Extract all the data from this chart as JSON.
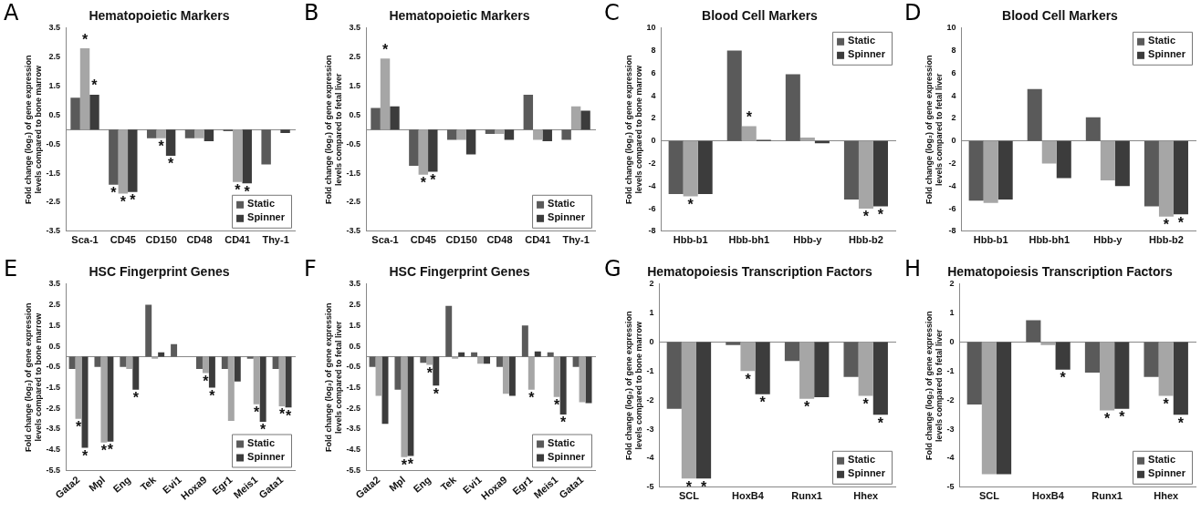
{
  "chart_data": [
    {
      "type": "bar",
      "title": "Hematopoietic Markers",
      "ylabel": "Fold change (log₂) of gene expression levels compared to bone marrow",
      "annotations": [
        "A"
      ],
      "categories": [
        "Sca-1",
        "CD45",
        "CD150",
        "CD48",
        "CD41",
        "Thy-1"
      ],
      "ylim": [
        -3.5,
        3.5
      ],
      "yticks": [
        -3.5,
        -2.5,
        -1.5,
        -0.5,
        0.5,
        1.5,
        2.5,
        3.5
      ],
      "legend": "bottom right",
      "series": [
        {
          "name": "Static",
          "color": "#5a5a5a",
          "values": [
            1.1,
            -1.9,
            -0.3,
            -0.3,
            -0.05,
            -1.2
          ],
          "value_labels": [
            null,
            "*",
            null,
            null,
            null,
            null
          ]
        },
        {
          "color": "#a6a6a6",
          "values": [
            2.8,
            -2.2,
            -0.3,
            -0.3,
            -1.8,
            0
          ],
          "value_labels": [
            "*",
            "*",
            "*",
            null,
            "*",
            null
          ]
        },
        {
          "name": "Spinner",
          "color": "#3c3c3c",
          "values": [
            1.2,
            -2.15,
            -0.9,
            -0.4,
            -1.85,
            -0.12
          ],
          "value_labels": [
            "*",
            "*",
            "*",
            null,
            "*",
            null
          ]
        }
      ]
    },
    {
      "type": "bar",
      "title": "Hematopoietic Markers",
      "ylabel": "Fold change (log₂) of gene expression levels compared to fetal liver",
      "annotations": [
        "B"
      ],
      "categories": [
        "Sca-1",
        "CD45",
        "CD150",
        "CD48",
        "CD41",
        "Thy-1"
      ],
      "ylim": [
        -3.5,
        3.5
      ],
      "yticks": [
        -3.5,
        -2.5,
        -1.5,
        -0.5,
        0.5,
        1.5,
        2.5,
        3.5
      ],
      "legend": "bottom right",
      "series": [
        {
          "name": "Static",
          "color": "#5a5a5a",
          "values": [
            0.75,
            -1.25,
            -0.35,
            -0.15,
            1.2,
            -0.35
          ],
          "value_labels": [
            null,
            null,
            null,
            null,
            null,
            null
          ]
        },
        {
          "color": "#a6a6a6",
          "values": [
            2.45,
            -1.55,
            -0.35,
            -0.15,
            -0.35,
            0.8
          ],
          "value_labels": [
            "*",
            "*",
            null,
            null,
            null,
            null
          ]
        },
        {
          "name": "Spinner",
          "color": "#3c3c3c",
          "values": [
            0.8,
            -1.45,
            -0.85,
            -0.35,
            -0.4,
            0.65
          ],
          "value_labels": [
            null,
            "*",
            null,
            null,
            null,
            null
          ]
        }
      ]
    },
    {
      "type": "bar",
      "title": "Blood Cell Markers",
      "ylabel": "Fold change (log₂) of gene expression levels compared to bone marrow",
      "annotations": [
        "C"
      ],
      "categories": [
        "Hbb-b1",
        "Hbb-bh1",
        "Hbb-y",
        "Hbb-b2"
      ],
      "ylim": [
        -8,
        10
      ],
      "yticks": [
        -8,
        -6,
        -4,
        -2,
        0,
        2,
        4,
        6,
        8,
        10
      ],
      "legend": "top right",
      "series": [
        {
          "name": "Static",
          "color": "#5a5a5a",
          "values": [
            -4.7,
            8,
            5.9,
            -5.2
          ],
          "value_labels": [
            null,
            null,
            null,
            null
          ]
        },
        {
          "color": "#a6a6a6",
          "values": [
            -4.9,
            1.3,
            0.3,
            -6
          ],
          "value_labels": [
            "*",
            "*",
            null,
            "*"
          ]
        },
        {
          "name": "Spinner",
          "color": "#3c3c3c",
          "values": [
            -4.7,
            0.1,
            -0.2,
            -5.8
          ],
          "value_labels": [
            null,
            null,
            null,
            "*"
          ]
        }
      ]
    },
    {
      "type": "bar",
      "title": "Blood Cell Markers",
      "ylabel": "Fold change (log₂) of gene expression levels compared to fetal liver",
      "annotations": [
        "D"
      ],
      "categories": [
        "Hbb-b1",
        "Hbb-bh1",
        "Hbb-y",
        "Hbb-b2"
      ],
      "ylim": [
        -8,
        10
      ],
      "yticks": [
        -8,
        -6,
        -4,
        -2,
        0,
        2,
        4,
        6,
        8,
        10
      ],
      "legend": "top right",
      "series": [
        {
          "name": "Static",
          "color": "#5a5a5a",
          "values": [
            -5.3,
            4.6,
            2.1,
            -5.8
          ],
          "value_labels": [
            null,
            null,
            null,
            null
          ]
        },
        {
          "color": "#a6a6a6",
          "values": [
            -5.5,
            -2,
            -3.5,
            -6.7
          ],
          "value_labels": [
            null,
            null,
            null,
            "*"
          ]
        },
        {
          "name": "Spinner",
          "color": "#3c3c3c",
          "values": [
            -5.2,
            -3.3,
            -4,
            -6.5
          ],
          "value_labels": [
            null,
            null,
            null,
            "*"
          ]
        }
      ]
    },
    {
      "type": "bar",
      "title": "HSC Fingerprint Genes",
      "ylabel": "Fold change (log₂) of gene expression levels compared to bone marrow",
      "annotations": [
        "E"
      ],
      "categories": [
        "Gata2",
        "Mpl",
        "Eng",
        "Tek",
        "Evi1",
        "Hoxa9",
        "Egr1",
        "Meis1",
        "Gata1"
      ],
      "ylim": [
        -5.5,
        3.5
      ],
      "yticks": [
        -5.5,
        -4.5,
        -3.5,
        -2.5,
        -1.5,
        -0.5,
        0.5,
        1.5,
        2.5,
        3.5
      ],
      "legend": "bottom right",
      "series": [
        {
          "name": "Static",
          "color": "#5a5a5a",
          "values": [
            -0.6,
            -0.5,
            -0.5,
            2.5,
            0.6,
            -0.6,
            -0.6,
            -0.1,
            -0.6
          ],
          "value_labels": [
            null,
            null,
            null,
            null,
            null,
            null,
            null,
            null,
            null
          ]
        },
        {
          "color": "#a6a6a6",
          "values": [
            -3,
            -4.15,
            -0.6,
            -0.1,
            0,
            -0.8,
            -3.1,
            -2.3,
            -2.4
          ],
          "value_labels": [
            "*",
            "*",
            null,
            null,
            null,
            "*",
            null,
            "*",
            "*"
          ]
        },
        {
          "name": "Spinner",
          "color": "#3c3c3c",
          "values": [
            -4.4,
            -4.1,
            -1.6,
            0.2,
            0,
            -1.5,
            -1.2,
            -3.15,
            -2.45
          ],
          "value_labels": [
            "*",
            "*",
            "*",
            null,
            null,
            "*",
            null,
            "*",
            "*"
          ]
        }
      ]
    },
    {
      "type": "bar",
      "title": "HSC Fingerprint Genes",
      "ylabel": "Fold change (log₂) of gene expression levels compared to fetal liver",
      "annotations": [
        "F"
      ],
      "categories": [
        "Gata2",
        "Mpl",
        "Eng",
        "Tek",
        "Evi1",
        "Hoxa9",
        "Egr1",
        "Meis1",
        "Gata1"
      ],
      "ylim": [
        -5.5,
        3.5
      ],
      "yticks": [
        -5.5,
        -4.5,
        -3.5,
        -2.5,
        -1.5,
        -0.5,
        0.5,
        1.5,
        2.5,
        3.5
      ],
      "legend": "bottom right",
      "series": [
        {
          "name": "Static",
          "color": "#5a5a5a",
          "values": [
            -0.5,
            -1.6,
            -0.3,
            2.45,
            0.2,
            -0.5,
            1.5,
            0.2,
            -0.5
          ],
          "value_labels": [
            null,
            null,
            null,
            null,
            null,
            null,
            null,
            null,
            null
          ]
        },
        {
          "color": "#a6a6a6",
          "values": [
            -1.9,
            -4.85,
            -0.4,
            -0.1,
            -0.35,
            -1.8,
            -1.6,
            -1.95,
            -2.2
          ],
          "value_labels": [
            null,
            "*",
            "*",
            null,
            null,
            null,
            "*",
            "*",
            null
          ]
        },
        {
          "name": "Spinner",
          "color": "#3c3c3c",
          "values": [
            -3.25,
            -4.8,
            -1.4,
            0.2,
            -0.35,
            -1.9,
            0.25,
            -2.8,
            -2.25
          ],
          "value_labels": [
            null,
            "*",
            "*",
            null,
            null,
            null,
            null,
            "*",
            null
          ]
        }
      ]
    },
    {
      "type": "bar",
      "title": "Hematopoiesis Transcription Factors",
      "ylabel": "Fold change (log₂) of gene expression levels compared to bone marrow",
      "annotations": [
        "G"
      ],
      "categories": [
        "SCL",
        "HoxB4",
        "Runx1",
        "Hhex"
      ],
      "ylim": [
        -5,
        2
      ],
      "yticks": [
        -5,
        -4,
        -3,
        -2,
        -1,
        0,
        1,
        2
      ],
      "legend": "bottom right",
      "series": [
        {
          "name": "Static",
          "color": "#5a5a5a",
          "values": [
            -2.3,
            -0.1,
            -0.65,
            -1.2
          ],
          "value_labels": [
            null,
            null,
            null,
            null
          ]
        },
        {
          "color": "#a6a6a6",
          "values": [
            -4.7,
            -1,
            -1.95,
            -1.85
          ],
          "value_labels": [
            "*",
            "*",
            "*",
            "*"
          ]
        },
        {
          "name": "Spinner",
          "color": "#3c3c3c",
          "values": [
            -4.7,
            -1.8,
            -1.9,
            -2.5
          ],
          "value_labels": [
            "*",
            "*",
            null,
            "*"
          ]
        }
      ]
    },
    {
      "type": "bar",
      "title": "Hematopoiesis Transcription Factors",
      "ylabel": "Fold change (log₂) of gene expression levels compared to fetal liver",
      "annotations": [
        "H"
      ],
      "categories": [
        "SCL",
        "HoxB4",
        "Runx1",
        "Hhex"
      ],
      "ylim": [
        -5,
        2
      ],
      "yticks": [
        -5,
        -4,
        -3,
        -2,
        -1,
        0,
        1,
        2
      ],
      "legend": "bottom right",
      "series": [
        {
          "name": "Static",
          "color": "#5a5a5a",
          "values": [
            -2.15,
            0.75,
            -1.05,
            -1.2
          ],
          "value_labels": [
            null,
            null,
            null,
            null
          ]
        },
        {
          "color": "#a6a6a6",
          "values": [
            -4.55,
            -0.1,
            -2.35,
            -1.85
          ],
          "value_labels": [
            null,
            null,
            "*",
            "*"
          ]
        },
        {
          "name": "Spinner",
          "color": "#3c3c3c",
          "values": [
            -4.55,
            -0.95,
            -2.3,
            -2.5
          ],
          "value_labels": [
            null,
            "*",
            "*",
            "*"
          ]
        }
      ]
    }
  ]
}
